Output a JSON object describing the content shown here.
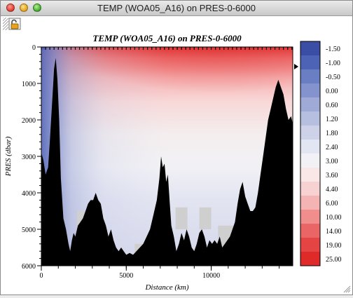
{
  "window": {
    "title": "TEMP (WOA05_A16) on PRES-0-6000"
  },
  "toolbar": {
    "lock_tool": "lock-icon"
  },
  "chart_data": {
    "type": "heatmap",
    "title": "TEMP (WOA05_A16) on PRES-0-6000",
    "xlabel": "Distance (km)",
    "ylabel": "PRES (dbar)",
    "xlim": [
      0,
      14800
    ],
    "ylim": [
      6000,
      0
    ],
    "x_ticks": [
      "0",
      "5000",
      "10000"
    ],
    "x_tick_values": [
      0,
      5000,
      10000
    ],
    "y_ticks": [
      "0",
      "1000",
      "2000",
      "3000",
      "4000",
      "5000",
      "6000"
    ],
    "y_tick_values": [
      0,
      1000,
      2000,
      3000,
      4000,
      5000,
      6000
    ],
    "colorbar": {
      "labels": [
        "-1.50",
        "-1.00",
        "-0.50",
        "0.00",
        "0.60",
        "1.20",
        "1.80",
        "2.40",
        "3.00",
        "3.60",
        "4.40",
        "6.00",
        "10.00",
        "14.00",
        "19.00",
        "25.00"
      ],
      "colors": [
        "#3b4ea6",
        "#4d63b5",
        "#6a7ec3",
        "#8493cd",
        "#9faad6",
        "#b7bfe0",
        "#cdd2e9",
        "#e2e5f2",
        "#f2f2f6",
        "#f9e7e7",
        "#f8d2d2",
        "#f5b4b4",
        "#f08d8d",
        "#ea6565",
        "#e44444",
        "#df2a2a"
      ]
    },
    "temperature_field_description_levels": [
      25.0,
      19.0,
      14.0,
      10.0,
      6.0,
      4.4,
      3.6,
      3.0,
      2.4,
      1.8,
      1.2,
      0.6,
      0.0,
      -0.5
    ],
    "bathymetry": {
      "distance_km": [
        0,
        120,
        250,
        400,
        500,
        650,
        750,
        850,
        950,
        1050,
        1150,
        1300,
        1450,
        1600,
        1700,
        1800,
        1900,
        2000,
        2150,
        2300,
        2450,
        2600,
        2750,
        2900,
        3050,
        3200,
        3350,
        3500,
        3650,
        3800,
        3950,
        4100,
        4250,
        4400,
        4550,
        4700,
        4850,
        5000,
        5200,
        5400,
        5600,
        5800,
        6000,
        6200,
        6400,
        6600,
        6800,
        6950,
        7050,
        7150,
        7250,
        7350,
        7450,
        7550,
        7650,
        7800,
        7950,
        8100,
        8250,
        8400,
        8550,
        8700,
        8850,
        9000,
        9150,
        9300,
        9450,
        9600,
        9750,
        9900,
        10050,
        10200,
        10350,
        10500,
        10650,
        10800,
        10950,
        11100,
        11250,
        11400,
        11550,
        11700,
        11850,
        12000,
        12150,
        12300,
        12450,
        12600,
        12750,
        12900,
        13050,
        13200,
        13350,
        13500,
        13650,
        13800,
        13950,
        14100,
        14250,
        14400,
        14550,
        14700,
        14800
      ],
      "depth_dbar": [
        2900,
        3100,
        3500,
        3300,
        2600,
        1400,
        600,
        300,
        900,
        2000,
        3600,
        4700,
        5000,
        5400,
        5600,
        5300,
        5100,
        5200,
        4900,
        4800,
        4700,
        4500,
        4300,
        4200,
        4200,
        4000,
        4200,
        4300,
        4700,
        4900,
        5200,
        5000,
        5300,
        5500,
        5600,
        5500,
        5600,
        5700,
        5650,
        5700,
        5600,
        5500,
        5400,
        5200,
        5000,
        4600,
        4200,
        3600,
        3000,
        3300,
        3200,
        3700,
        3500,
        4200,
        4900,
        5200,
        5600,
        5400,
        5100,
        5300,
        5000,
        5200,
        5500,
        5600,
        5400,
        5100,
        5000,
        5200,
        5500,
        5300,
        5400,
        5300,
        5400,
        5200,
        5500,
        5400,
        5300,
        5200,
        5000,
        4800,
        4300,
        3900,
        3700,
        4100,
        4300,
        4500,
        4500,
        4400,
        4000,
        3500,
        3000,
        2500,
        2000,
        1700,
        1400,
        1100,
        900,
        1100,
        1300,
        1700,
        2000,
        1900,
        2100
      ]
    },
    "grey_fill_blocks": [
      {
        "x_km": [
          2100,
          2800
        ],
        "depth_dbar": [
          4500,
          5100
        ]
      },
      {
        "x_km": [
          5500,
          6700
        ],
        "depth_dbar": [
          5400,
          6000
        ]
      },
      {
        "x_km": [
          7900,
          8600
        ],
        "depth_dbar": [
          4400,
          5000
        ]
      },
      {
        "x_km": [
          9300,
          10000
        ],
        "depth_dbar": [
          4400,
          5000
        ]
      },
      {
        "x_km": [
          10400,
          11800
        ],
        "depth_dbar": [
          4900,
          5500
        ]
      },
      {
        "x_km": [
          13200,
          13600
        ],
        "depth_dbar": [
          2800,
          3000
        ]
      },
      {
        "x_km": [
          12600,
          13000
        ],
        "depth_dbar": [
          4400,
          4800
        ]
      }
    ]
  }
}
